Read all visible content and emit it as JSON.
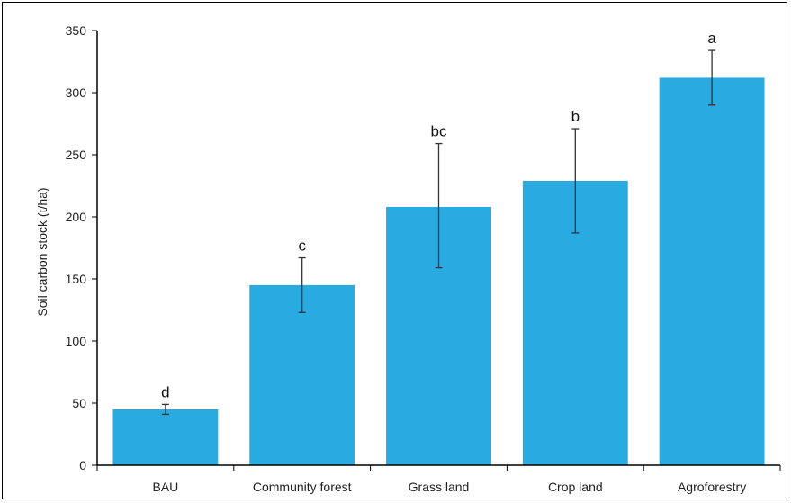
{
  "chart_data": {
    "type": "bar",
    "title": "",
    "xlabel": "",
    "ylabel": "Soil carbon stock (t/ha)",
    "ylim": [
      0,
      350
    ],
    "yticks": [
      0,
      50,
      100,
      150,
      200,
      250,
      300,
      350
    ],
    "grid": false,
    "legend": "none",
    "categories": [
      "BAU",
      "Community forest",
      "Grass land",
      "Crop land",
      "Agroforestry"
    ],
    "series": [
      {
        "values": [
          45,
          145,
          208,
          229,
          312
        ],
        "error_low": [
          41,
          123,
          159,
          187,
          290
        ],
        "error_high": [
          49,
          167,
          259,
          271,
          334
        ],
        "significance_letters": [
          "d",
          "c",
          "bc",
          "b",
          "a"
        ]
      }
    ],
    "colors": {
      "bar": "#29ABE2",
      "axis": "#000000",
      "error_bar": "#333333"
    }
  }
}
